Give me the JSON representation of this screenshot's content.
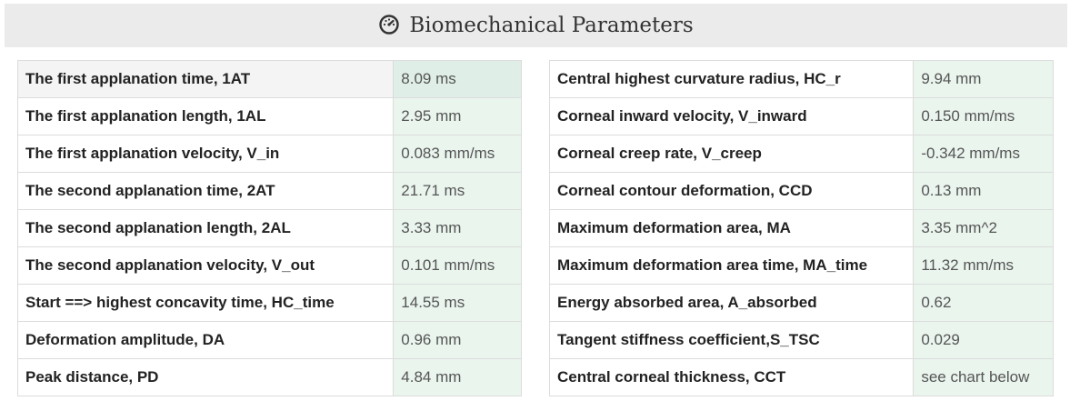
{
  "header": {
    "title": "Biomechanical Parameters",
    "icon": "dashboard-gauge-icon"
  },
  "left_table": [
    {
      "label": "The first applanation time, 1AT",
      "value": "8.09 ms"
    },
    {
      "label": "The first applanation length, 1AL",
      "value": "2.95 mm"
    },
    {
      "label": "The first applanation velocity, V_in",
      "value": "0.083 mm/ms"
    },
    {
      "label": "The second applanation time, 2AT",
      "value": "21.71 ms"
    },
    {
      "label": "The second applanation length, 2AL",
      "value": "3.33 mm"
    },
    {
      "label": "The second applanation velocity, V_out",
      "value": "0.101 mm/ms"
    },
    {
      "label": "Start ==> highest concavity time, HC_time",
      "value": "14.55 ms"
    },
    {
      "label": "Deformation amplitude, DA",
      "value": "0.96 mm"
    },
    {
      "label": "Peak distance, PD",
      "value": "4.84 mm"
    }
  ],
  "right_table": [
    {
      "label": "Central highest curvature radius, HC_r",
      "value": "9.94 mm"
    },
    {
      "label": "Corneal inward velocity, V_inward",
      "value": "0.150 mm/ms"
    },
    {
      "label": "Corneal creep rate, V_creep",
      "value": "-0.342 mm/ms"
    },
    {
      "label": "Corneal contour deformation, CCD",
      "value": "0.13 mm"
    },
    {
      "label": "Maximum deformation area, MA",
      "value": "3.35 mm^2"
    },
    {
      "label": "Maximum deformation area time, MA_time",
      "value": "11.32 mm/ms"
    },
    {
      "label": "Energy absorbed area, A_absorbed",
      "value": "0.62"
    },
    {
      "label": "Tangent stiffness coefficient,S_TSC",
      "value": "0.029"
    },
    {
      "label": "Central corneal thickness, CCT",
      "value": "see chart below"
    }
  ],
  "colors": {
    "header_bg": "#ebebeb",
    "value_bg": "#eaf5ee",
    "border": "#dcdcdc"
  }
}
